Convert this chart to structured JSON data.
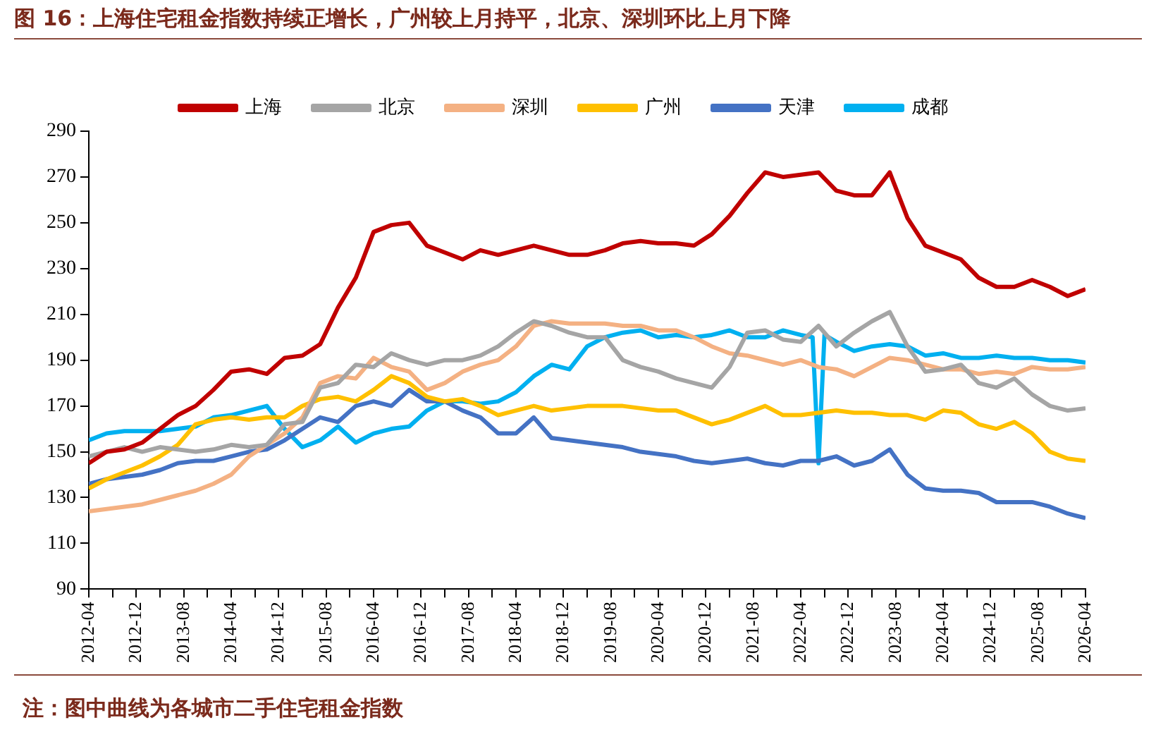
{
  "chart_data": {
    "type": "line",
    "title": "图 16：上海住宅租金指数持续正增长，广州较上月持平，北京、深圳环比上月下降",
    "annotations": [
      "注：图中曲线为各城市二手住宅租金指数"
    ],
    "x": [
      "2012-04",
      "2012-07",
      "2012-10",
      "2013-01",
      "2013-04",
      "2013-07",
      "2013-10",
      "2014-01",
      "2014-04",
      "2014-07",
      "2014-10",
      "2015-01",
      "2015-04",
      "2015-07",
      "2015-10",
      "2016-01",
      "2016-04",
      "2016-07",
      "2016-10",
      "2017-01",
      "2017-04",
      "2017-07",
      "2017-10",
      "2018-01",
      "2018-04",
      "2018-07",
      "2018-10",
      "2019-01",
      "2019-04",
      "2019-07",
      "2019-10",
      "2020-01",
      "2020-04",
      "2020-07",
      "2020-10",
      "2021-01",
      "2021-04",
      "2021-07",
      "2021-10",
      "2022-01",
      "2022-04",
      "2022-07",
      "2022-10",
      "2023-01",
      "2023-04",
      "2023-07",
      "2023-10",
      "2024-01",
      "2024-04",
      "2024-07",
      "2024-10",
      "2025-01",
      "2025-04",
      "2025-07",
      "2025-10",
      "2026-01",
      "2026-04"
    ],
    "series": [
      {
        "name": "上海",
        "color": "#c00000",
        "values": [
          145,
          150,
          151,
          154,
          160,
          166,
          170,
          177,
          185,
          186,
          184,
          191,
          192,
          197,
          213,
          226,
          246,
          249,
          250,
          240,
          237,
          234,
          238,
          236,
          238,
          240,
          238,
          236,
          236,
          238,
          241,
          242,
          241,
          241,
          240,
          245,
          253,
          263,
          272,
          270,
          271,
          272,
          264,
          262,
          262,
          272,
          252,
          240,
          237,
          234,
          226,
          222,
          222,
          225,
          222,
          218,
          221
        ]
      },
      {
        "name": "北京",
        "color": "#a5a5a5",
        "values": [
          148,
          150,
          152,
          150,
          152,
          151,
          150,
          151,
          153,
          152,
          153,
          162,
          163,
          178,
          180,
          188,
          187,
          193,
          190,
          188,
          190,
          190,
          192,
          196,
          202,
          207,
          205,
          202,
          200,
          200,
          190,
          187,
          185,
          182,
          180,
          178,
          187,
          202,
          203,
          199,
          198,
          205,
          196,
          202,
          207,
          211,
          196,
          185,
          186,
          188,
          180,
          178,
          182,
          175,
          170,
          168,
          169
        ]
      },
      {
        "name": "深圳",
        "color": "#f4b183",
        "values": [
          124,
          125,
          126,
          127,
          129,
          131,
          133,
          136,
          140,
          148,
          153,
          158,
          165,
          180,
          183,
          182,
          191,
          187,
          185,
          177,
          180,
          185,
          188,
          190,
          196,
          205,
          207,
          206,
          206,
          206,
          205,
          205,
          203,
          203,
          200,
          196,
          193,
          192,
          190,
          188,
          190,
          187,
          186,
          183,
          187,
          191,
          190,
          188,
          186,
          186,
          184,
          185,
          184,
          187,
          186,
          186,
          187
        ]
      },
      {
        "name": "广州",
        "color": "#ffc000",
        "values": [
          134,
          138,
          141,
          144,
          148,
          153,
          162,
          164,
          165,
          164,
          165,
          165,
          170,
          173,
          174,
          172,
          177,
          183,
          180,
          174,
          172,
          173,
          170,
          166,
          168,
          170,
          168,
          169,
          170,
          170,
          170,
          169,
          168,
          168,
          165,
          162,
          164,
          167,
          170,
          166,
          166,
          167,
          168,
          167,
          167,
          166,
          166,
          164,
          168,
          167,
          162,
          160,
          163,
          158,
          150,
          147,
          146
        ]
      },
      {
        "name": "天津",
        "color": "#4472c4",
        "values": [
          136,
          138,
          139,
          140,
          142,
          145,
          146,
          146,
          148,
          150,
          151,
          155,
          160,
          165,
          163,
          170,
          172,
          170,
          177,
          172,
          172,
          168,
          165,
          158,
          158,
          165,
          156,
          155,
          154,
          153,
          152,
          150,
          149,
          148,
          146,
          145,
          146,
          147,
          145,
          144,
          146,
          146,
          148,
          144,
          146,
          151,
          140,
          134,
          133,
          133,
          132,
          128,
          128,
          128,
          126,
          123,
          121
        ]
      },
      {
        "name": "成都",
        "color": "#00b0f0",
        "x": [
          "2012-04",
          "2012-07",
          "2012-10",
          "2013-01",
          "2013-04",
          "2013-07",
          "2013-10",
          "2014-01",
          "2014-04",
          "2014-07",
          "2014-10",
          "2015-01",
          "2015-04",
          "2015-07",
          "2015-10",
          "2016-01",
          "2016-04",
          "2016-07",
          "2016-10",
          "2017-01",
          "2017-04",
          "2017-07",
          "2017-10",
          "2018-01",
          "2018-04",
          "2018-07",
          "2018-10",
          "2019-01",
          "2019-04",
          "2019-07",
          "2019-10",
          "2020-01",
          "2020-04",
          "2020-07",
          "2020-10",
          "2021-01",
          "2021-04",
          "2021-07",
          "2021-10",
          "2022-01",
          "2022-04",
          "2022-06",
          "2022-07",
          "2022-08",
          "2022-10",
          "2023-01",
          "2023-04",
          "2023-07",
          "2023-10",
          "2024-01",
          "2024-04",
          "2024-07",
          "2024-10",
          "2025-01",
          "2025-04",
          "2025-07",
          "2025-10",
          "2026-01",
          "2026-04"
        ],
        "values": [
          155,
          158,
          159,
          159,
          159,
          160,
          161,
          165,
          166,
          168,
          170,
          160,
          152,
          155,
          161,
          154,
          158,
          160,
          161,
          168,
          172,
          172,
          171,
          172,
          176,
          183,
          188,
          186,
          196,
          200,
          202,
          203,
          200,
          201,
          200,
          201,
          203,
          200,
          200,
          203,
          201,
          200,
          145,
          201,
          198,
          194,
          196,
          197,
          196,
          192,
          193,
          191,
          191,
          192,
          191,
          191,
          190,
          190,
          189
        ]
      }
    ],
    "xlim": [
      "2012-04",
      "2026-04"
    ],
    "xticks": [
      "2012-04",
      {
        "value": "2012-08",
        "label": null
      },
      "2012-12",
      {
        "value": "2013-04",
        "label": null
      },
      "2013-08",
      {
        "value": "2013-12",
        "label": null
      },
      "2014-04",
      {
        "value": "2014-08",
        "label": null
      },
      "2014-12",
      {
        "value": "2015-04",
        "label": null
      },
      "2015-08",
      {
        "value": "2015-12",
        "label": null
      },
      "2016-04",
      {
        "value": "2016-08",
        "label": null
      },
      "2016-12",
      {
        "value": "2017-04",
        "label": null
      },
      "2017-08",
      {
        "value": "2017-12",
        "label": null
      },
      "2018-04",
      {
        "value": "2018-08",
        "label": null
      },
      "2018-12",
      {
        "value": "2019-04",
        "label": null
      },
      "2019-08",
      {
        "value": "2019-12",
        "label": null
      },
      "2020-04",
      {
        "value": "2020-08",
        "label": null
      },
      "2020-12",
      {
        "value": "2021-04",
        "label": null
      },
      "2021-08",
      {
        "value": "2021-12",
        "label": null
      },
      "2022-04",
      {
        "value": "2022-08",
        "label": null
      },
      "2022-12",
      {
        "value": "2023-04",
        "label": null
      },
      "2023-08",
      {
        "value": "2023-12",
        "label": null
      },
      "2024-04",
      {
        "value": "2024-08",
        "label": null
      },
      "2024-12",
      {
        "value": "2025-04",
        "label": null
      },
      "2025-08",
      {
        "value": "2025-12",
        "label": null
      },
      "2026-04"
    ],
    "ylim": [
      90,
      290
    ],
    "yticks": [
      90,
      110,
      130,
      150,
      170,
      190,
      210,
      230,
      250,
      270,
      290
    ],
    "grid": false,
    "legend": "top",
    "marker": "none",
    "line_style": "solid"
  }
}
